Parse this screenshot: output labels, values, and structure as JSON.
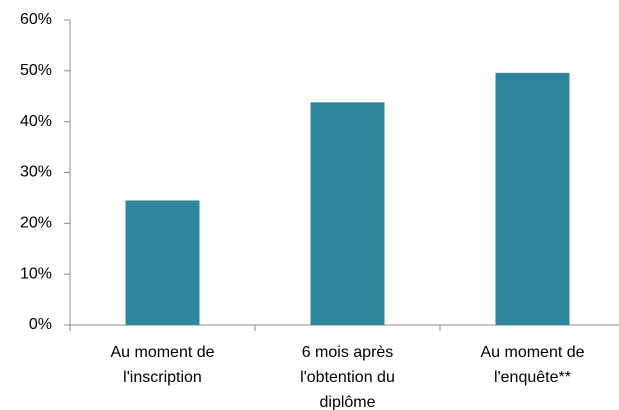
{
  "chart_data": {
    "type": "bar",
    "categories": [
      "Au moment de\nl'inscription",
      "6 mois après\nl'obtention du\ndiplôme",
      "Au moment de\nl'enquête**"
    ],
    "values": [
      24.5,
      43.8,
      49.6
    ],
    "color": "#2f879d",
    "ylim": [
      0,
      60
    ],
    "yticks": [
      {
        "value": 0,
        "label": "0%"
      },
      {
        "value": 10,
        "label": "10%"
      },
      {
        "value": 20,
        "label": "20%"
      },
      {
        "value": 30,
        "label": "30%"
      },
      {
        "value": 40,
        "label": "40%"
      },
      {
        "value": 50,
        "label": "50%"
      },
      {
        "value": 60,
        "label": "60%"
      }
    ],
    "grid": false
  }
}
